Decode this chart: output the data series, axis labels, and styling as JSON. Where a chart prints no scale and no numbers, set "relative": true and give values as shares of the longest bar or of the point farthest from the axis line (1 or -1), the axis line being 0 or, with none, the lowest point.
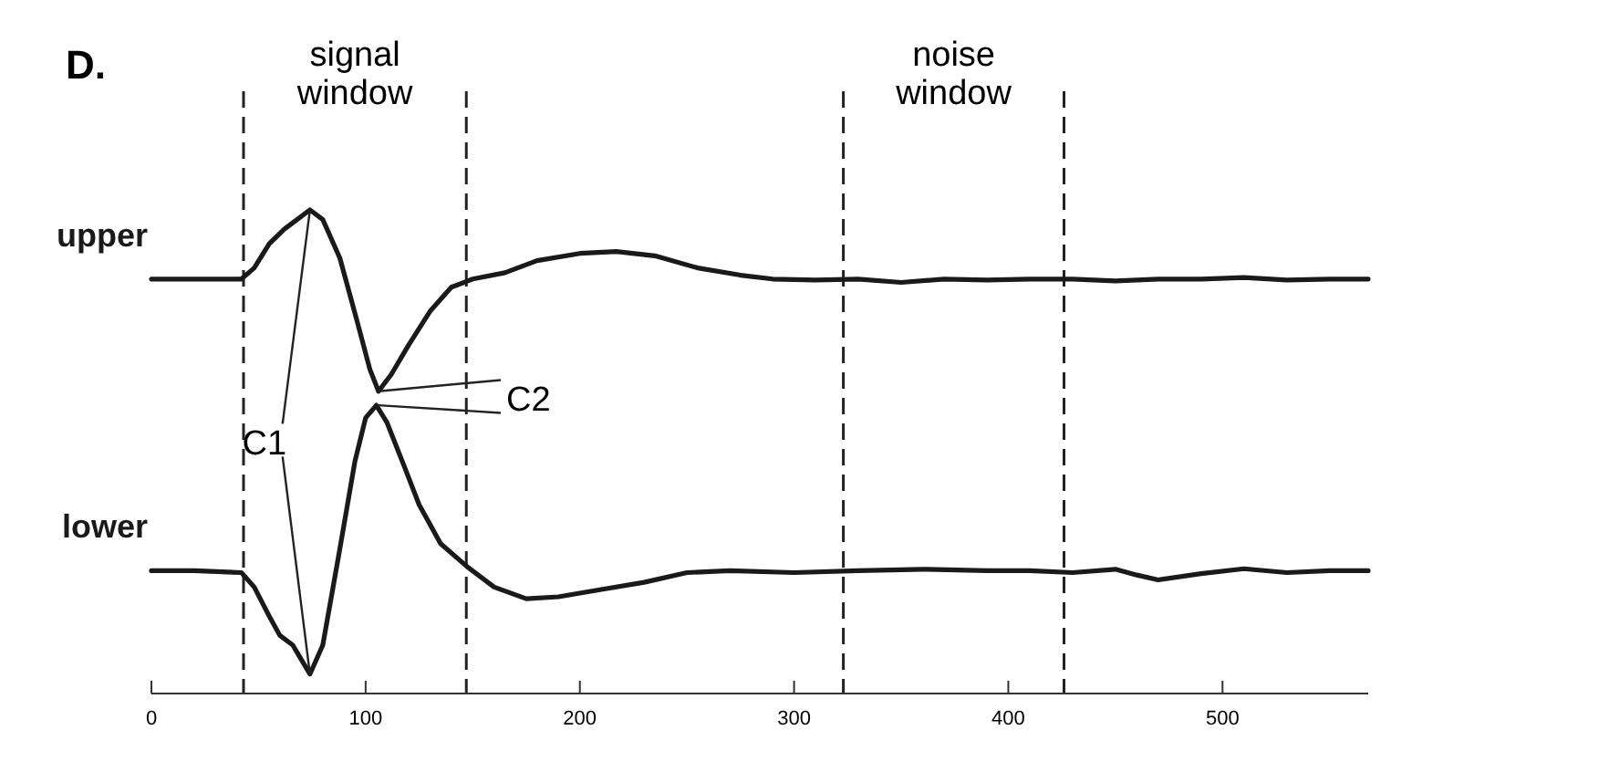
{
  "chart_data": {
    "type": "line",
    "title": "D.",
    "relative": true,
    "tick_labels": "x",
    "line_style": "solid",
    "xlim": [
      0,
      568
    ],
    "xticks": [
      0,
      100,
      200,
      300,
      400,
      500
    ],
    "series": [
      {
        "name": "upper",
        "color": "#1a1a1a",
        "x": [
          0,
          20,
          42,
          48,
          55,
          62,
          68,
          74,
          80,
          88,
          96,
          102,
          106,
          112,
          120,
          130,
          140,
          150,
          165,
          180,
          200,
          217,
          235,
          255,
          275,
          290,
          310,
          330,
          350,
          370,
          390,
          410,
          430,
          450,
          470,
          490,
          510,
          530,
          550,
          568
        ],
        "values": [
          0.857,
          0.857,
          0.857,
          0.88,
          0.93,
          0.96,
          0.98,
          1.0,
          0.98,
          0.9,
          0.77,
          0.67,
          0.625,
          0.66,
          0.72,
          0.79,
          0.84,
          0.857,
          0.87,
          0.895,
          0.91,
          0.914,
          0.905,
          0.88,
          0.865,
          0.857,
          0.855,
          0.857,
          0.85,
          0.857,
          0.855,
          0.857,
          0.857,
          0.853,
          0.857,
          0.857,
          0.86,
          0.855,
          0.857,
          0.857
        ]
      },
      {
        "name": "lower",
        "color": "#1a1a1a",
        "x": [
          0,
          20,
          42,
          48,
          55,
          60,
          66,
          70,
          74,
          80,
          88,
          95,
          100,
          105,
          110,
          118,
          125,
          135,
          148,
          160,
          175,
          190,
          210,
          230,
          250,
          270,
          300,
          330,
          360,
          390,
          410,
          430,
          450,
          460,
          470,
          490,
          510,
          530,
          550,
          568
        ],
        "values": [
          0.254,
          0.254,
          0.25,
          0.22,
          0.16,
          0.12,
          0.1,
          0.07,
          0.04,
          0.1,
          0.3,
          0.48,
          0.57,
          0.596,
          0.56,
          0.47,
          0.39,
          0.31,
          0.26,
          0.22,
          0.196,
          0.2,
          0.215,
          0.23,
          0.25,
          0.254,
          0.25,
          0.254,
          0.257,
          0.254,
          0.254,
          0.25,
          0.257,
          0.245,
          0.235,
          0.248,
          0.258,
          0.25,
          0.254,
          0.254
        ]
      }
    ],
    "ref_lines": [
      {
        "axis": "x",
        "value": 43,
        "label": "signal window",
        "line_style": "dashed"
      },
      {
        "axis": "x",
        "value": 147,
        "line_style": "dashed"
      },
      {
        "axis": "x",
        "value": 323,
        "label": "noise window",
        "line_style": "dashed"
      },
      {
        "axis": "x",
        "value": 426,
        "line_style": "dashed"
      }
    ],
    "annotations": [
      {
        "text": "C1",
        "x": 74,
        "y": 1.0
      },
      {
        "text": "C2",
        "x": 106,
        "y": 0.625
      }
    ]
  }
}
